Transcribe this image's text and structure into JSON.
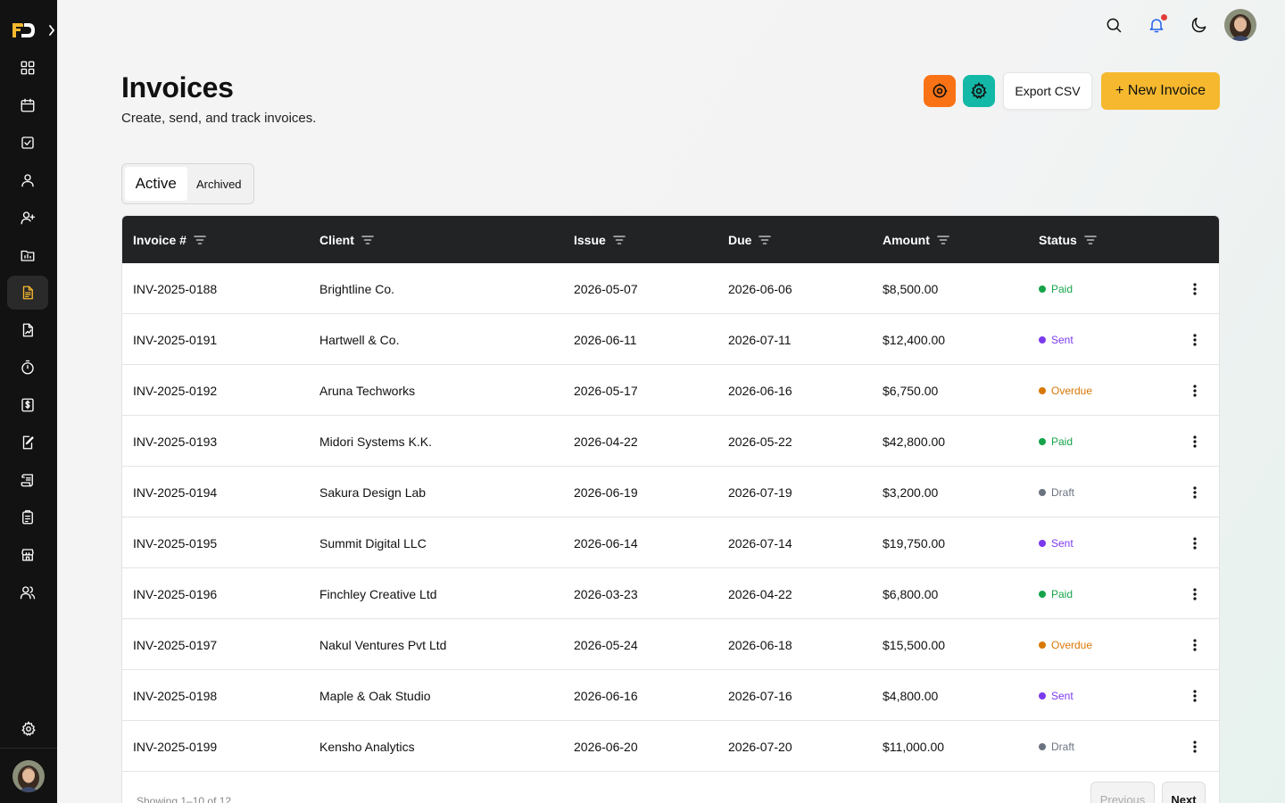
{
  "header": {
    "title": "Invoices",
    "subtitle": "Create, send, and track invoices.",
    "export_label": "Export CSV",
    "new_label": "+ New Invoice"
  },
  "tabs": [
    {
      "label": "Active",
      "active": true
    },
    {
      "label": "Archived",
      "active": false
    }
  ],
  "table": {
    "columns": [
      "Invoice #",
      "Client",
      "Issue",
      "Due",
      "Amount",
      "Status"
    ],
    "rows": [
      {
        "invoice": "INV-2025-0188",
        "client": "Brightline Co.",
        "issue": "2026-05-07",
        "due": "2026-06-06",
        "amount": "$8,500.00",
        "status": "Paid"
      },
      {
        "invoice": "INV-2025-0191",
        "client": "Hartwell & Co.",
        "issue": "2026-06-11",
        "due": "2026-07-11",
        "amount": "$12,400.00",
        "status": "Sent"
      },
      {
        "invoice": "INV-2025-0192",
        "client": "Aruna Techworks",
        "issue": "2026-05-17",
        "due": "2026-06-16",
        "amount": "$6,750.00",
        "status": "Overdue"
      },
      {
        "invoice": "INV-2025-0193",
        "client": "Midori Systems K.K.",
        "issue": "2026-04-22",
        "due": "2026-05-22",
        "amount": "$42,800.00",
        "status": "Paid"
      },
      {
        "invoice": "INV-2025-0194",
        "client": "Sakura Design Lab",
        "issue": "2026-06-19",
        "due": "2026-07-19",
        "amount": "$3,200.00",
        "status": "Draft"
      },
      {
        "invoice": "INV-2025-0195",
        "client": "Summit Digital LLC",
        "issue": "2026-06-14",
        "due": "2026-07-14",
        "amount": "$19,750.00",
        "status": "Sent"
      },
      {
        "invoice": "INV-2025-0196",
        "client": "Finchley Creative Ltd",
        "issue": "2026-03-23",
        "due": "2026-04-22",
        "amount": "$6,800.00",
        "status": "Paid"
      },
      {
        "invoice": "INV-2025-0197",
        "client": "Nakul Ventures Pvt Ltd",
        "issue": "2026-05-24",
        "due": "2026-06-18",
        "amount": "$15,500.00",
        "status": "Overdue"
      },
      {
        "invoice": "INV-2025-0198",
        "client": "Maple & Oak Studio",
        "issue": "2026-06-16",
        "due": "2026-07-16",
        "amount": "$4,800.00",
        "status": "Sent"
      },
      {
        "invoice": "INV-2025-0199",
        "client": "Kensho Analytics",
        "issue": "2026-06-20",
        "due": "2026-07-20",
        "amount": "$11,000.00",
        "status": "Draft"
      }
    ],
    "showing": "Showing 1–10 of 12",
    "prev_label": "Previous",
    "next_label": "Next"
  },
  "status_colors": {
    "Paid": "#16a34a",
    "Sent": "#7c3aed",
    "Overdue": "#d97706",
    "Draft": "#6b7280"
  },
  "colors": {
    "accent": "#f5b82e",
    "sidebar": "#121212",
    "table_header": "#222325",
    "orange_button": "#f97316",
    "teal_button": "#14b8a6"
  },
  "sidebar_icons": [
    "dashboard-icon",
    "calendar-icon",
    "checkbox-icon",
    "user-icon",
    "user-plus-icon",
    "folder-chart-icon",
    "invoice-document-icon",
    "file-signature-icon",
    "timer-icon",
    "dollar-receipt-icon",
    "edit-document-icon",
    "scroll-icon",
    "clipboard-icon",
    "store-icon",
    "users-icon",
    "gear-icon"
  ]
}
